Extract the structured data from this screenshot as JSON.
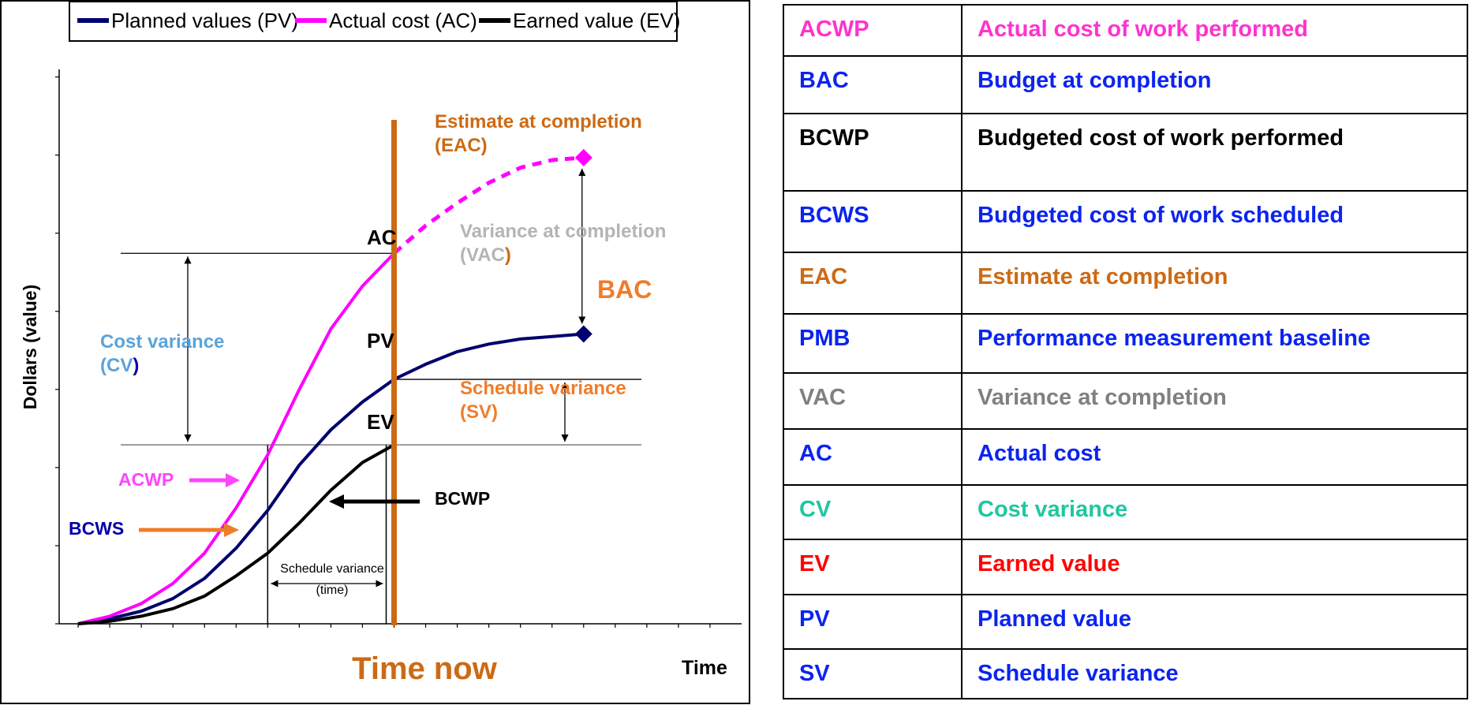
{
  "colors": {
    "pv": "#00006e",
    "ac": "#ff00ff",
    "ev": "#000000",
    "time_now": "#cc6a14",
    "bac": "#ef7d2b",
    "cost_variance": "#5ba3d9",
    "schedule_variance": "#ef7d2b",
    "vac": "#b4b4b4",
    "acwp_label": "#ff44ff",
    "bcws_label": "#0000aa",
    "bcws_arrow": "#ef7d2b",
    "table_blue": "#0b24f0",
    "table_magenta": "#ff33cc",
    "table_orange": "#cc6a14",
    "table_gray": "#808080",
    "table_teal": "#1ec8a0",
    "table_red": "#ff0000",
    "table_black": "#000000"
  },
  "legend": {
    "pv": "Planned values (PV)",
    "ac": "Actual cost (AC)",
    "ev": "Earned value (EV)"
  },
  "chart_data": {
    "type": "line",
    "xlabel": "Time",
    "ylabel": "Dollars (value)",
    "x": [
      0,
      1,
      2,
      3,
      4,
      5,
      6,
      7,
      8,
      9,
      10,
      11,
      12,
      13,
      14,
      15,
      16
    ],
    "series": [
      {
        "name": "Planned values (PV)",
        "color": "#00006e",
        "x": [
          0,
          1,
          2,
          3,
          4,
          5,
          6,
          7,
          8,
          9,
          10,
          11,
          12,
          13,
          14,
          15,
          16
        ],
        "values": [
          0,
          2,
          5,
          10,
          18,
          30,
          45,
          63,
          77,
          88,
          97,
          103,
          108,
          111,
          113,
          114,
          115
        ]
      },
      {
        "name": "Actual cost (AC)",
        "color": "#ff00ff",
        "x": [
          0,
          1,
          2,
          3,
          4,
          5,
          6,
          7,
          8,
          9,
          10
        ],
        "values": [
          0,
          3,
          8,
          16,
          28,
          46,
          67,
          93,
          117,
          134,
          147
        ]
      },
      {
        "name": "Earned value (EV)",
        "color": "#000000",
        "x": [
          0,
          1,
          2,
          3,
          4,
          5,
          6,
          7,
          8,
          9,
          10
        ],
        "values": [
          0,
          1,
          3,
          6,
          11,
          19,
          28,
          40,
          53,
          64,
          71
        ]
      },
      {
        "name": "AC forecast",
        "color": "#ff00ff",
        "dashed": true,
        "x": [
          10,
          11,
          12,
          13,
          14,
          15,
          16
        ],
        "values": [
          147,
          158,
          167,
          175,
          181,
          184,
          185
        ]
      }
    ],
    "time_now_x": 10,
    "bac_point": {
      "x": 16,
      "y": 115
    },
    "eac_point": {
      "x": 16,
      "y": 185
    },
    "ev_level": 71,
    "pv_level": 97,
    "ac_level": 147,
    "ev_planned_time": 6,
    "xlim": [
      -0.6,
      21
    ],
    "ylim": [
      0,
      220
    ],
    "y_ticks": [
      0,
      31,
      62,
      93,
      124,
      155,
      186,
      217
    ],
    "x_ticks": [
      0,
      1,
      2,
      3,
      4,
      5,
      6,
      7,
      8,
      9,
      10,
      11,
      12,
      13,
      14,
      15,
      16,
      17,
      18,
      19,
      20
    ]
  },
  "labels": {
    "eac_line1": "Estimate at completion",
    "eac_line2": "(EAC)",
    "vac_line1": "Variance at completion",
    "vac_line2": "(VAC",
    "vac_paren": ")",
    "bac": "BAC",
    "ac": "AC",
    "pv": "PV",
    "ev": "EV",
    "cv_line1": "Cost variance",
    "cv_line2": "(CV",
    "cv_paren": ")",
    "sv_line1": "Schedule variance",
    "sv_line2": "(SV)",
    "acwp": "ACWP",
    "bcws": "BCWS",
    "bcwp": "BCWP",
    "sv_time_line1": "Schedule variance",
    "sv_time_line2": "(time)",
    "time_now": "Time now"
  },
  "glossary": [
    {
      "abbr": "ACWP",
      "term": "Actual cost of  work performed",
      "color_key": "table_magenta",
      "height": 65
    },
    {
      "abbr": "BAC",
      "term": "Budget at completion",
      "color_key": "table_blue",
      "height": 73
    },
    {
      "abbr": "BCWP",
      "term": "Budgeted cost of  work performed",
      "color_key": "table_black",
      "height": 98
    },
    {
      "abbr": "BCWS",
      "term": "Budgeted cost of  work scheduled",
      "color_key": "table_blue",
      "height": 78
    },
    {
      "abbr": "EAC",
      "term": "Estimate at completion",
      "color_key": "table_orange",
      "height": 78
    },
    {
      "abbr": "PMB",
      "term": "Performance measurement baseline",
      "color_key": "table_blue",
      "height": 75
    },
    {
      "abbr": "VAC",
      "term": "Variance at completion",
      "color_key": "table_gray",
      "height": 71
    },
    {
      "abbr": "AC",
      "term": "Actual cost",
      "color_key": "table_blue",
      "height": 71
    },
    {
      "abbr": "CV",
      "term": "Cost variance",
      "color_key": "table_teal",
      "height": 69
    },
    {
      "abbr": "EV",
      "term": "Earned value",
      "color_key": "table_red",
      "height": 70
    },
    {
      "abbr": "PV",
      "term": "Planned value",
      "color_key": "table_blue",
      "height": 69
    },
    {
      "abbr": "SV",
      "term": "Schedule variance",
      "color_key": "table_blue",
      "height": 63
    }
  ]
}
